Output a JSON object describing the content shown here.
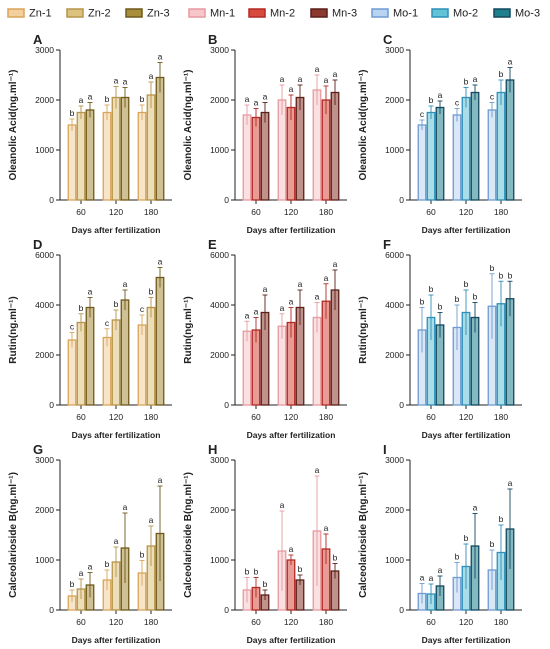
{
  "legend": [
    {
      "label": "Zn-1",
      "color": "#f2cf9c",
      "stroke": "#d9a55a"
    },
    {
      "label": "Zn-2",
      "color": "#dcc27f",
      "stroke": "#b8944a"
    },
    {
      "label": "Zn-3",
      "color": "#a88e3a",
      "stroke": "#6f5a1c"
    },
    {
      "label": "Mn-1",
      "color": "#f7c6c9",
      "stroke": "#e79aa0"
    },
    {
      "label": "Mn-2",
      "color": "#d74b3f",
      "stroke": "#b32a24"
    },
    {
      "label": "Mn-3",
      "color": "#8a3a2e",
      "stroke": "#5a2019"
    },
    {
      "label": "Mo-1",
      "color": "#b9d4f0",
      "stroke": "#6f9bd2"
    },
    {
      "label": "Mo-2",
      "color": "#63c3d6",
      "stroke": "#2f8fb8"
    },
    {
      "label": "Mo-3",
      "color": "#1f7f8c",
      "stroke": "#14485e"
    }
  ],
  "chart_data": [
    {
      "panel": "A",
      "type": "bar",
      "ylabel": "Oleanolic Acid(ng.ml⁻¹)",
      "xlabel": "Days after fertilization",
      "categories": [
        "60",
        "120",
        "180"
      ],
      "ylim": [
        0,
        3000
      ],
      "yticks": [
        0,
        1000,
        2000,
        3000
      ],
      "group": "Zn",
      "series": [
        {
          "name": "Zn-1",
          "values": [
            1500,
            1750,
            1750
          ],
          "err": [
            120,
            150,
            150
          ],
          "letters": [
            "b",
            "b",
            "b"
          ]
        },
        {
          "name": "Zn-2",
          "values": [
            1750,
            2050,
            2100
          ],
          "err": [
            130,
            220,
            260
          ],
          "letters": [
            "a",
            "a",
            "a"
          ]
        },
        {
          "name": "Zn-3",
          "values": [
            1800,
            2050,
            2450
          ],
          "err": [
            150,
            200,
            300
          ],
          "letters": [
            "a",
            "a",
            "a"
          ]
        }
      ]
    },
    {
      "panel": "B",
      "type": "bar",
      "ylabel": "Oleanolic Acid(ng.ml⁻¹)",
      "xlabel": "Days after fertilization",
      "categories": [
        "60",
        "120",
        "180"
      ],
      "ylim": [
        0,
        3000
      ],
      "yticks": [
        0,
        1000,
        2000,
        3000
      ],
      "group": "Mn",
      "series": [
        {
          "name": "Mn-1",
          "values": [
            1700,
            2000,
            2200
          ],
          "err": [
            200,
            300,
            300
          ],
          "letters": [
            "a",
            "a",
            "a"
          ]
        },
        {
          "name": "Mn-2",
          "values": [
            1650,
            1850,
            2000
          ],
          "err": [
            180,
            250,
            280
          ],
          "letters": [
            "a",
            "a",
            "a"
          ]
        },
        {
          "name": "Mn-3",
          "values": [
            1750,
            2050,
            2150
          ],
          "err": [
            200,
            250,
            250
          ],
          "letters": [
            "a",
            "a",
            "a"
          ]
        }
      ]
    },
    {
      "panel": "C",
      "type": "bar",
      "ylabel": "Oleanolic Acid(ng.ml⁻¹)",
      "xlabel": "Days after fertilization",
      "categories": [
        "60",
        "120",
        "180"
      ],
      "ylim": [
        0,
        3000
      ],
      "yticks": [
        0,
        1000,
        2000,
        3000
      ],
      "group": "Mo",
      "series": [
        {
          "name": "Mo-1",
          "values": [
            1500,
            1700,
            1800
          ],
          "err": [
            100,
            130,
            150
          ],
          "letters": [
            "c",
            "c",
            "c"
          ]
        },
        {
          "name": "Mo-2",
          "values": [
            1750,
            2050,
            2150
          ],
          "err": [
            130,
            200,
            250
          ],
          "letters": [
            "b",
            "b",
            "b"
          ]
        },
        {
          "name": "Mo-3",
          "values": [
            1850,
            2150,
            2400
          ],
          "err": [
            130,
            150,
            250
          ],
          "letters": [
            "a",
            "a",
            "a"
          ]
        }
      ]
    },
    {
      "panel": "D",
      "type": "bar",
      "ylabel": "Rutin(ng.ml⁻¹)",
      "xlabel": "Days after fertilization",
      "categories": [
        "60",
        "120",
        "180"
      ],
      "ylim": [
        0,
        6000
      ],
      "yticks": [
        0,
        2000,
        4000,
        6000
      ],
      "group": "Zn",
      "series": [
        {
          "name": "Zn-1",
          "values": [
            2600,
            2700,
            3200
          ],
          "err": [
            300,
            350,
            400
          ],
          "letters": [
            "c",
            "c",
            "c"
          ]
        },
        {
          "name": "Zn-2",
          "values": [
            3300,
            3400,
            3900
          ],
          "err": [
            350,
            400,
            400
          ],
          "letters": [
            "b",
            "b",
            "b"
          ]
        },
        {
          "name": "Zn-3",
          "values": [
            3900,
            4200,
            5100
          ],
          "err": [
            400,
            400,
            400
          ],
          "letters": [
            "a",
            "a",
            "a"
          ]
        }
      ]
    },
    {
      "panel": "E",
      "type": "bar",
      "ylabel": "Rutin(ng.ml⁻¹)",
      "xlabel": "Days after fertilization",
      "categories": [
        "60",
        "120",
        "180"
      ],
      "ylim": [
        0,
        6000
      ],
      "yticks": [
        0,
        2000,
        4000,
        6000
      ],
      "group": "Mn",
      "series": [
        {
          "name": "Mn-1",
          "values": [
            2950,
            3150,
            3500
          ],
          "err": [
            400,
            500,
            600
          ],
          "letters": [
            "a",
            "a",
            "a"
          ]
        },
        {
          "name": "Mn-2",
          "values": [
            3000,
            3300,
            4150
          ],
          "err": [
            500,
            600,
            700
          ],
          "letters": [
            "a",
            "a",
            "a"
          ]
        },
        {
          "name": "Mn-3",
          "values": [
            3700,
            3900,
            4600
          ],
          "err": [
            700,
            700,
            800
          ],
          "letters": [
            "a",
            "a",
            "a"
          ]
        }
      ]
    },
    {
      "panel": "F",
      "type": "bar",
      "ylabel": "Rutin(ng.ml⁻¹)",
      "xlabel": "Days after fertilization",
      "categories": [
        "60",
        "120",
        "180"
      ],
      "ylim": [
        0,
        6000
      ],
      "yticks": [
        0,
        2000,
        4000,
        6000
      ],
      "group": "Mo",
      "series": [
        {
          "name": "Mo-1",
          "values": [
            3000,
            3100,
            3950
          ],
          "err": [
            900,
            900,
            1300
          ],
          "letters": [
            "b",
            "b",
            "b"
          ]
        },
        {
          "name": "Mo-2",
          "values": [
            3500,
            3700,
            4050
          ],
          "err": [
            900,
            900,
            900
          ],
          "letters": [
            "b",
            "b",
            "b"
          ]
        },
        {
          "name": "Mo-3",
          "values": [
            3200,
            3500,
            4250
          ],
          "err": [
            500,
            600,
            700
          ],
          "letters": [
            "b",
            "b",
            "b"
          ]
        }
      ]
    },
    {
      "panel": "G",
      "type": "bar",
      "ylabel": "Calceolarioside B(ng.ml⁻¹)",
      "xlabel": "Days after fertilization",
      "categories": [
        "60",
        "120",
        "180"
      ],
      "ylim": [
        0,
        3000
      ],
      "yticks": [
        0,
        1000,
        2000,
        3000
      ],
      "group": "Zn",
      "series": [
        {
          "name": "Zn-1",
          "values": [
            280,
            600,
            740
          ],
          "err": [
            120,
            200,
            250
          ],
          "letters": [
            "b",
            "b",
            "b"
          ]
        },
        {
          "name": "Zn-2",
          "values": [
            420,
            960,
            1280
          ],
          "err": [
            200,
            300,
            400
          ],
          "letters": [
            "a",
            "a",
            "a"
          ]
        },
        {
          "name": "Zn-3",
          "values": [
            500,
            1240,
            1530
          ],
          "err": [
            250,
            700,
            950
          ],
          "letters": [
            "a",
            "a",
            "a"
          ]
        }
      ]
    },
    {
      "panel": "H",
      "type": "bar",
      "ylabel": "Calceolarioside B(ng.ml⁻¹)",
      "xlabel": "Days after fertilization",
      "categories": [
        "60",
        "120",
        "180"
      ],
      "ylim": [
        0,
        3000
      ],
      "yticks": [
        0,
        1000,
        2000,
        3000
      ],
      "group": "Mn",
      "series": [
        {
          "name": "Mn-1",
          "values": [
            400,
            1180,
            1580
          ],
          "err": [
            250,
            800,
            1100
          ],
          "letters": [
            "b",
            "a",
            "a"
          ]
        },
        {
          "name": "Mn-2",
          "values": [
            450,
            1000,
            1220
          ],
          "err": [
            200,
            100,
            300
          ],
          "letters": [
            "b",
            "a",
            "a"
          ]
        },
        {
          "name": "Mn-3",
          "values": [
            300,
            600,
            780
          ],
          "err": [
            100,
            100,
            150
          ],
          "letters": [
            "b",
            "b",
            "b"
          ]
        }
      ]
    },
    {
      "panel": "I",
      "type": "bar",
      "ylabel": "Calceolarioside B(ng.ml⁻¹)",
      "xlabel": "Days after fertilization",
      "categories": [
        "60",
        "120",
        "180"
      ],
      "ylim": [
        0,
        3000
      ],
      "yticks": [
        0,
        1000,
        2000,
        3000
      ],
      "group": "Mo",
      "series": [
        {
          "name": "Mo-1",
          "values": [
            330,
            650,
            800
          ],
          "err": [
            200,
            300,
            400
          ],
          "letters": [
            "a",
            "b",
            "b"
          ]
        },
        {
          "name": "Mo-2",
          "values": [
            320,
            870,
            1150
          ],
          "err": [
            200,
            450,
            550
          ],
          "letters": [
            "a",
            "b",
            "b"
          ]
        },
        {
          "name": "Mo-3",
          "values": [
            480,
            1280,
            1620
          ],
          "err": [
            200,
            650,
            800
          ],
          "letters": [
            "a",
            "a",
            "a"
          ]
        }
      ]
    }
  ]
}
